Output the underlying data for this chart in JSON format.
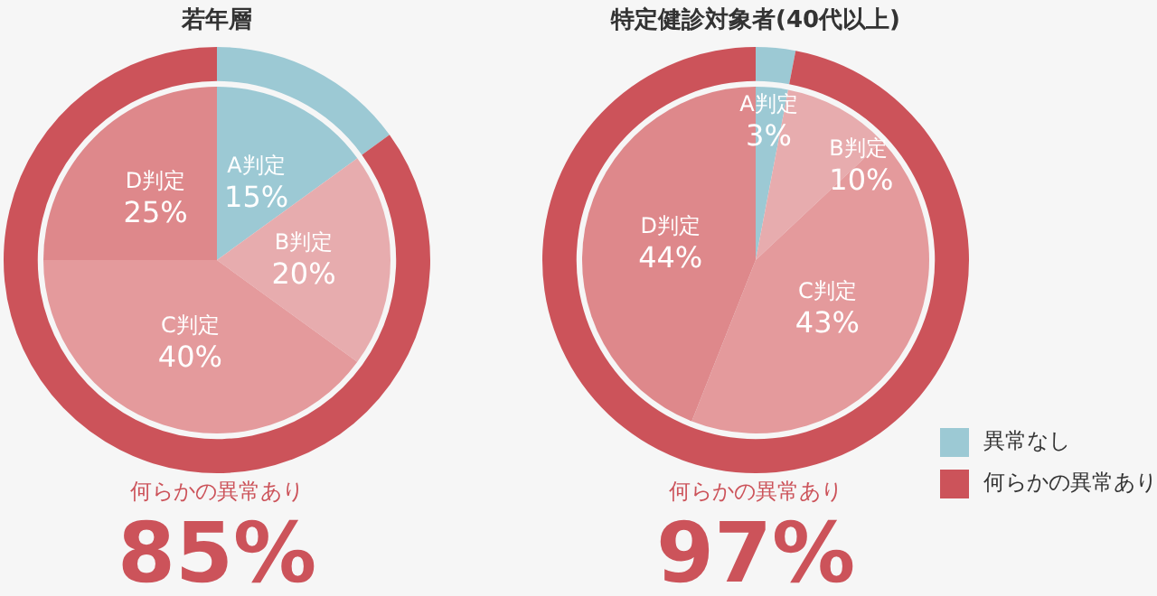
{
  "chart_data": [
    {
      "type": "pie",
      "title": "若年層",
      "categories": [
        "A判定",
        "B判定",
        "C判定",
        "D判定"
      ],
      "values": [
        15,
        20,
        40,
        25
      ],
      "colors": [
        "#9cc9d4",
        "#e7acae",
        "#e49a9c",
        "#de888b"
      ],
      "value_labels": [
        "15%",
        "20%",
        "40%",
        "25%"
      ]
    },
    {
      "type": "donut",
      "categories": [
        null,
        null
      ],
      "values": [
        15,
        85
      ],
      "colors": [
        "#9cc9d4",
        "#cc535a"
      ],
      "annotations": [
        "何らかの異常あり",
        "85%"
      ]
    },
    {
      "type": "pie",
      "title": "特定健診対象者(40代以上)",
      "categories": [
        "A判定",
        "B判定",
        "C判定",
        "D判定"
      ],
      "values": [
        3,
        10,
        43,
        44
      ],
      "colors": [
        "#9cc9d4",
        "#e7acae",
        "#e49a9c",
        "#de888b"
      ],
      "value_labels": [
        "3%",
        "10%",
        "43%",
        "44%"
      ]
    },
    {
      "type": "donut",
      "categories": [
        "異常なし",
        "何らかの異常あり"
      ],
      "values": [
        3,
        97
      ],
      "colors": [
        "#9cc9d4",
        "#cc535a"
      ],
      "legend": "bottom right",
      "annotations": [
        "何らかの異常あり",
        "97%"
      ]
    }
  ]
}
